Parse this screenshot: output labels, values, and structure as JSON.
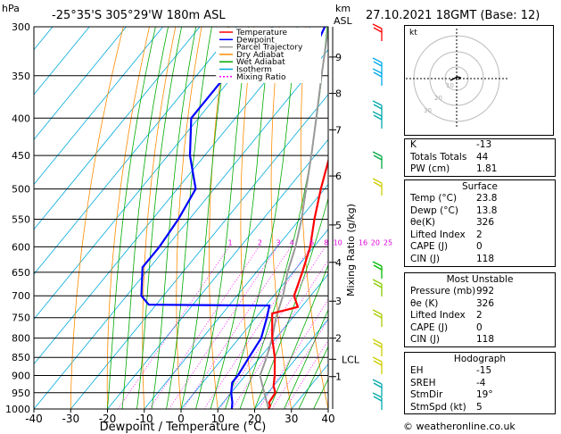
{
  "header": {
    "pressure_unit": "hPa",
    "location": "-25°35'S  305°29'W  180m  ASL",
    "height_unit": "km",
    "height_unit2": "ASL",
    "datetime": "27.10.2021  18GMT  (Base: 12)"
  },
  "legend": [
    {
      "name": "Temperature",
      "color": "#ff0000"
    },
    {
      "name": "Dewpoint",
      "color": "#0000ff"
    },
    {
      "name": "Parcel Trajectory",
      "color": "#999999"
    },
    {
      "name": "Dry Adiabat",
      "color": "#ff8c00"
    },
    {
      "name": "Wet Adiabat",
      "color": "#00aa00"
    },
    {
      "name": "Isotherm",
      "color": "#00aadd"
    },
    {
      "name": "Mixing Ratio",
      "color": "#ff00ff"
    }
  ],
  "chart_data": {
    "type": "line",
    "title": "",
    "xlabel": "Dewpoint / Temperature (°C)",
    "ylabel": "hPa",
    "right_axis_label": "Mixing Ratio (g/kg)",
    "xlim": [
      -40,
      40
    ],
    "xticks": [
      -40,
      -30,
      -20,
      -10,
      0,
      10,
      20,
      30,
      40
    ],
    "pressure_levels": [
      300,
      350,
      400,
      450,
      500,
      550,
      600,
      650,
      700,
      750,
      800,
      850,
      900,
      950,
      1000
    ],
    "plim": [
      300,
      1000
    ],
    "km_ticks": [
      {
        "label": "9",
        "p": 330
      },
      {
        "label": "8",
        "p": 370
      },
      {
        "label": "7",
        "p": 415
      },
      {
        "label": "6",
        "p": 480
      },
      {
        "label": "5",
        "p": 560
      },
      {
        "label": "4",
        "p": 630
      },
      {
        "label": "3",
        "p": 712
      },
      {
        "label": "2",
        "p": 800
      },
      {
        "label": "LCL",
        "p": 855
      },
      {
        "label": "1",
        "p": 903
      }
    ],
    "mixing_ratio_labels": [
      "1",
      "2",
      "3",
      "4",
      "6",
      "8",
      "10",
      "16",
      "20",
      "25"
    ],
    "mixing_ratio_label_p": 597,
    "series": [
      {
        "name": "Temperature",
        "color": "#ff0000",
        "points": [
          {
            "p": 300,
            "t": -35
          },
          {
            "p": 350,
            "t": -28
          },
          {
            "p": 400,
            "t": -22.5
          },
          {
            "p": 450,
            "t": -16
          },
          {
            "p": 500,
            "t": -11
          },
          {
            "p": 550,
            "t": -6
          },
          {
            "p": 600,
            "t": -1
          },
          {
            "p": 650,
            "t": 2.5
          },
          {
            "p": 700,
            "t": 5.5
          },
          {
            "p": 725,
            "t": 9
          },
          {
            "p": 740,
            "t": 3.5
          },
          {
            "p": 800,
            "t": 9
          },
          {
            "p": 850,
            "t": 14
          },
          {
            "p": 900,
            "t": 18
          },
          {
            "p": 930,
            "t": 20
          },
          {
            "p": 950,
            "t": 22
          },
          {
            "p": 980,
            "t": 22.5
          },
          {
            "p": 990,
            "t": 23.5
          },
          {
            "p": 1000,
            "t": 23.8
          }
        ]
      },
      {
        "name": "Dewpoint",
        "color": "#0000ff",
        "points": [
          {
            "p": 300,
            "t": -46
          },
          {
            "p": 320,
            "t": -44
          },
          {
            "p": 330,
            "t": -48
          },
          {
            "p": 355,
            "t": -62
          },
          {
            "p": 400,
            "t": -62
          },
          {
            "p": 450,
            "t": -54
          },
          {
            "p": 500,
            "t": -45
          },
          {
            "p": 550,
            "t": -43
          },
          {
            "p": 600,
            "t": -42
          },
          {
            "p": 640,
            "t": -42
          },
          {
            "p": 700,
            "t": -36
          },
          {
            "p": 720,
            "t": -32
          },
          {
            "p": 722,
            "t": 1
          },
          {
            "p": 750,
            "t": 3
          },
          {
            "p": 800,
            "t": 6
          },
          {
            "p": 850,
            "t": 7
          },
          {
            "p": 900,
            "t": 8
          },
          {
            "p": 920,
            "t": 8
          },
          {
            "p": 950,
            "t": 10
          },
          {
            "p": 980,
            "t": 12.5
          },
          {
            "p": 1000,
            "t": 13.8
          }
        ]
      },
      {
        "name": "Parcel Trajectory",
        "color": "#999999",
        "points": [
          {
            "p": 1000,
            "t": 23.8
          },
          {
            "p": 950,
            "t": 19
          },
          {
            "p": 900,
            "t": 14
          },
          {
            "p": 855,
            "t": 12
          },
          {
            "p": 800,
            "t": 9
          },
          {
            "p": 750,
            "t": 5.5
          },
          {
            "p": 700,
            "t": 2.5
          },
          {
            "p": 650,
            "t": -1.5
          },
          {
            "p": 600,
            "t": -5
          },
          {
            "p": 550,
            "t": -9.5
          },
          {
            "p": 500,
            "t": -15
          },
          {
            "p": 450,
            "t": -21
          },
          {
            "p": 400,
            "t": -28
          },
          {
            "p": 350,
            "t": -36
          },
          {
            "p": 300,
            "t": -45
          }
        ]
      }
    ]
  },
  "hodograph": {
    "label": "kt",
    "ring_labels": [
      "10",
      "20",
      "30"
    ]
  },
  "indices": [
    {
      "label": "K",
      "value": "-13"
    },
    {
      "label": "Totals Totals",
      "value": "44"
    },
    {
      "label": "PW (cm)",
      "value": "1.81"
    }
  ],
  "surface": {
    "title": "Surface",
    "rows": [
      {
        "label": "Temp (°C)",
        "value": "23.8"
      },
      {
        "label": "Dewp (°C)",
        "value": "13.8"
      },
      {
        "label": "θe(K)",
        "value": "326"
      },
      {
        "label": "Lifted Index",
        "value": "2"
      },
      {
        "label": "CAPE (J)",
        "value": "0"
      },
      {
        "label": "CIN (J)",
        "value": "118"
      }
    ]
  },
  "most_unstable": {
    "title": "Most Unstable",
    "rows": [
      {
        "label": "Pressure (mb)",
        "value": "992"
      },
      {
        "label": "θe (K)",
        "value": "326"
      },
      {
        "label": "Lifted Index",
        "value": "2"
      },
      {
        "label": "CAPE (J)",
        "value": "0"
      },
      {
        "label": "CIN (J)",
        "value": "118"
      }
    ]
  },
  "hodograph_table": {
    "title": "Hodograph",
    "rows": [
      {
        "label": "EH",
        "value": "-15"
      },
      {
        "label": "SREH",
        "value": "-4"
      },
      {
        "label": "StmDir",
        "value": "19°"
      },
      {
        "label": "StmSpd (kt)",
        "value": "5"
      }
    ]
  },
  "copyright": "© weatheronline.co.uk"
}
